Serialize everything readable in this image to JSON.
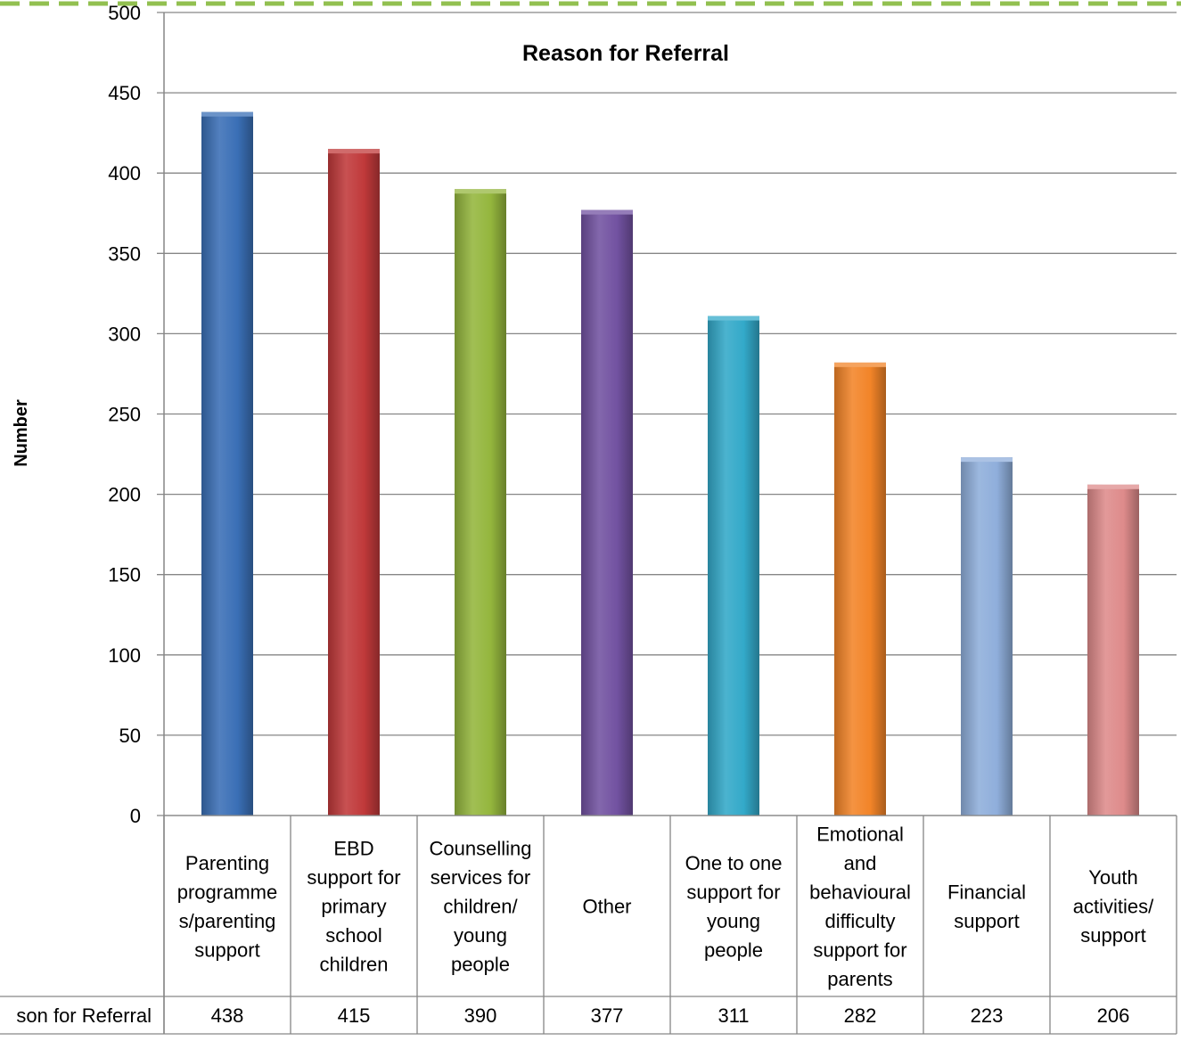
{
  "chart_data": {
    "type": "bar",
    "title": "Reason for Referral",
    "xlabel": "",
    "ylabel": "Number",
    "ylim": [
      0,
      500
    ],
    "yticks": [
      0,
      50,
      100,
      150,
      200,
      250,
      300,
      350,
      400,
      450,
      500
    ],
    "grid": true,
    "legend": "none",
    "categories": [
      "Parenting programme s/parenting support",
      "EBD support for primary school children",
      "Counselling services for children/ young people",
      "Other",
      "One to one support for young people",
      "Emotional and behavioural difficulty support for parents",
      "Financial support",
      "Youth activities/ support"
    ],
    "category_lines": [
      [
        "Parenting",
        "programme",
        "s/parenting",
        "support"
      ],
      [
        "EBD",
        "support for",
        "primary",
        "school",
        "children"
      ],
      [
        "Counselling",
        "services for",
        "children/",
        "young",
        "people"
      ],
      [
        "Other"
      ],
      [
        "One to one",
        "support for",
        "young",
        "people"
      ],
      [
        "Emotional",
        "and",
        "behavioural",
        "difficulty",
        "support for",
        "parents"
      ],
      [
        "Financial",
        "support"
      ],
      [
        "Youth",
        "activities/",
        "support"
      ]
    ],
    "series": [
      {
        "name": "Reason for Referral",
        "values": [
          438,
          415,
          390,
          377,
          311,
          282,
          223,
          206
        ]
      }
    ],
    "table_row_label": "son for Referral",
    "colors": [
      "#3a6fb6",
      "#c0393a",
      "#94b63d",
      "#7252a1",
      "#33a9c9",
      "#f28428",
      "#8faedb",
      "#de8b8b"
    ]
  }
}
